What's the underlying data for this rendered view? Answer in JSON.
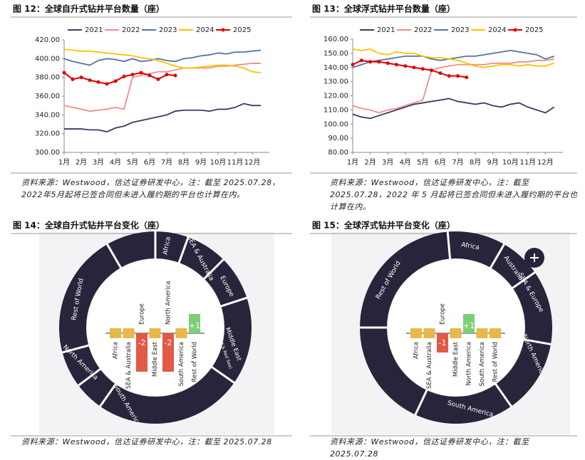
{
  "chart_data": [
    {
      "type": "line",
      "title": "图 12：全球自升式钻井平台数量（座）",
      "source": "资料来源：Westwood，信达证券研发中心，注：截至 2025.07.28，2022年5月起将已签合同但未进入履约期的平台也计算在内。",
      "x": [
        1,
        1.5,
        2,
        2.5,
        3,
        3.5,
        4,
        4.5,
        5,
        5.5,
        6,
        6.5,
        7,
        7.5,
        8,
        8.5,
        9,
        9.5,
        10,
        10.5,
        11,
        11.5,
        12,
        12.5
      ],
      "xlim": [
        1,
        13
      ],
      "xticks": [
        {
          "value": 1,
          "label": "1月"
        },
        {
          "value": 2,
          "label": "2月"
        },
        {
          "value": 3,
          "label": "3月"
        },
        {
          "value": 4,
          "label": "4月"
        },
        {
          "value": 5,
          "label": "5月"
        },
        {
          "value": 6,
          "label": "6月"
        },
        {
          "value": 7,
          "label": "7月"
        },
        {
          "value": 8,
          "label": "8月"
        },
        {
          "value": 9,
          "label": "9月"
        },
        {
          "value": 10,
          "label": "10月"
        },
        {
          "value": 11,
          "label": "11月"
        },
        {
          "value": 12,
          "label": "12月"
        }
      ],
      "ylim": [
        300,
        420
      ],
      "yticks": [
        {
          "value": 300,
          "label": "300.00"
        },
        {
          "value": 320,
          "label": "320.00"
        },
        {
          "value": 340,
          "label": "340.00"
        },
        {
          "value": 360,
          "label": "360.00"
        },
        {
          "value": 380,
          "label": "380.00"
        },
        {
          "value": 400,
          "label": "400.00"
        },
        {
          "value": 420,
          "label": "420.00"
        }
      ],
      "series": [
        {
          "name": "2021",
          "color": "#34405e",
          "values": [
            325,
            325,
            325,
            324,
            324,
            322,
            326,
            328,
            332,
            334,
            336,
            338,
            340,
            344,
            345,
            345,
            345,
            344,
            346,
            346,
            348,
            352,
            350,
            350
          ]
        },
        {
          "name": "2022",
          "color": "#f28b8b",
          "values": [
            350,
            348,
            346,
            344,
            345,
            346,
            348,
            346,
            380,
            382,
            384,
            386,
            386,
            388,
            390,
            390,
            390,
            390,
            392,
            392,
            393,
            394,
            395,
            395
          ]
        },
        {
          "name": "2023",
          "color": "#5572a8",
          "values": [
            400,
            397,
            395,
            393,
            398,
            400,
            399,
            397,
            400,
            397,
            398,
            400,
            398,
            397,
            400,
            401,
            403,
            404,
            406,
            405,
            407,
            407,
            408,
            409
          ]
        },
        {
          "name": "2024",
          "color": "#ffc000",
          "values": [
            410,
            409,
            408,
            408,
            407,
            406,
            405,
            404,
            403,
            401,
            400,
            398,
            395,
            392,
            390,
            390,
            391,
            392,
            393,
            393,
            392,
            390,
            386,
            385
          ]
        },
        {
          "name": "2025",
          "color": "#e00000",
          "markers": true,
          "values": [
            385,
            378,
            380,
            377,
            375,
            373,
            376,
            381,
            383,
            385,
            382,
            378,
            383,
            382,
            null,
            null,
            null,
            null,
            null,
            null,
            null,
            null,
            null,
            null
          ]
        }
      ]
    },
    {
      "type": "line",
      "title": "图 13：全球浮式钻井平台数量（座）",
      "source": "资料来源：Westwood，信达证券研发中心，注：截至 2025.07.28，2022 年 5 月起将已签合同但未进入履约期的平台也计算在内。",
      "x": [
        1,
        1.5,
        2,
        2.5,
        3,
        3.5,
        4,
        4.5,
        5,
        5.5,
        6,
        6.5,
        7,
        7.5,
        8,
        8.5,
        9,
        9.5,
        10,
        10.5,
        11,
        11.5,
        12,
        12.5
      ],
      "xlim": [
        1,
        13
      ],
      "xticks": [
        {
          "value": 1,
          "label": "1月"
        },
        {
          "value": 2,
          "label": "2月"
        },
        {
          "value": 3,
          "label": "3月"
        },
        {
          "value": 4,
          "label": "4月"
        },
        {
          "value": 5,
          "label": "5月"
        },
        {
          "value": 6,
          "label": "6月"
        },
        {
          "value": 7,
          "label": "7月"
        },
        {
          "value": 8,
          "label": "8月"
        },
        {
          "value": 9,
          "label": "9月"
        },
        {
          "value": 10,
          "label": "10月"
        },
        {
          "value": 11,
          "label": "11月"
        },
        {
          "value": 12,
          "label": "12月"
        }
      ],
      "ylim": [
        80,
        160
      ],
      "yticks": [
        {
          "value": 80,
          "label": "80.00"
        },
        {
          "value": 90,
          "label": "90.00"
        },
        {
          "value": 100,
          "label": "100.00"
        },
        {
          "value": 110,
          "label": "110.00"
        },
        {
          "value": 120,
          "label": "120.00"
        },
        {
          "value": 130,
          "label": "130.00"
        },
        {
          "value": 140,
          "label": "140.00"
        },
        {
          "value": 150,
          "label": "150.00"
        },
        {
          "value": 160,
          "label": "160.00"
        }
      ],
      "series": [
        {
          "name": "2021",
          "color": "#34405e",
          "values": [
            107,
            105,
            104,
            106,
            108,
            110,
            112,
            114,
            115,
            116,
            117,
            118,
            116,
            115,
            114,
            115,
            113,
            112,
            114,
            115,
            112,
            110,
            108,
            112
          ]
        },
        {
          "name": "2022",
          "color": "#f28b8b",
          "values": [
            113,
            111,
            110,
            108,
            110,
            111,
            113,
            115,
            117,
            138,
            140,
            141,
            142,
            142,
            142,
            142,
            143,
            143,
            143,
            144,
            144,
            145,
            145,
            146
          ]
        },
        {
          "name": "2023",
          "color": "#5572a8",
          "values": [
            140,
            142,
            144,
            145,
            146,
            147,
            148,
            148,
            148,
            146,
            145,
            146,
            147,
            148,
            148,
            149,
            150,
            151,
            152,
            151,
            150,
            149,
            146,
            148
          ]
        },
        {
          "name": "2024",
          "color": "#ffc000",
          "values": [
            153,
            152,
            153,
            150,
            149,
            151,
            150,
            150,
            148,
            147,
            147,
            146,
            145,
            143,
            141,
            140,
            141,
            142,
            142,
            141,
            142,
            141,
            141,
            143
          ]
        },
        {
          "name": "2025",
          "color": "#e00000",
          "markers": true,
          "values": [
            142,
            145,
            144,
            144,
            143,
            142,
            141,
            140,
            139,
            138,
            136,
            134,
            134,
            133,
            null,
            null,
            null,
            null,
            null,
            null,
            null,
            null,
            null,
            null
          ]
        }
      ]
    },
    {
      "type": "donut-bar",
      "title": "图 14：全球自升式钻井平台变化（座）",
      "source": "资料来源：Westwood，信达证券研发中心，注：截至 2025.07.28",
      "ring_labels": [
        "Africa",
        "SEA & Australia",
        "Europe",
        "Middle East",
        "(Persian Gulf & Red Sea)",
        "South America",
        "North America",
        "Rest of World"
      ],
      "categories": [
        "Africa",
        "SEA & Australia",
        "Europe",
        "Middle East",
        "North America",
        "South America",
        "Rest of World"
      ],
      "values": [
        0,
        0,
        -2,
        0,
        -2,
        0,
        1
      ],
      "value_labels": [
        null,
        null,
        "-2",
        null,
        "-2",
        null,
        "+1"
      ]
    },
    {
      "type": "donut-bar",
      "title": "图 15：全球浮式钻井平台变化（座）",
      "source": "资料来源：Westwood，信达证券研发中心，注：截至 2025.07.28",
      "ring_labels": [
        "Africa",
        "Australia",
        "SEA & Europe",
        "North America",
        "South America",
        "Rest of World"
      ],
      "categories": [
        "Africa",
        "SEA & Australia",
        "Europe",
        "Middle East",
        "North America",
        "South America",
        "Rest of World"
      ],
      "values": [
        0,
        0,
        -1,
        0,
        1,
        0,
        0
      ],
      "value_labels": [
        null,
        null,
        "-1",
        null,
        "+1",
        null,
        null
      ]
    }
  ]
}
